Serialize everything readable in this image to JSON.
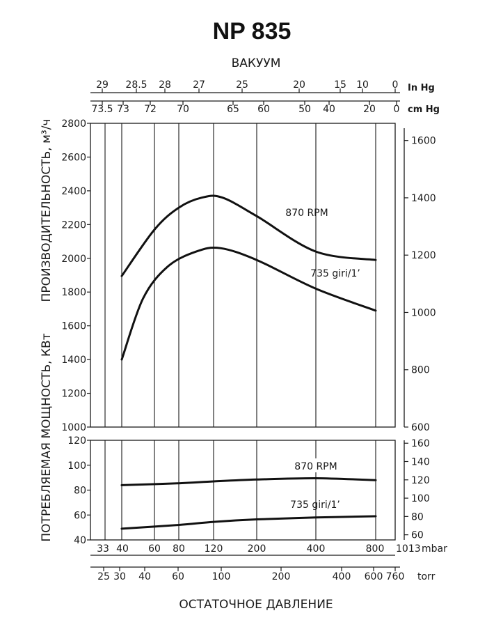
{
  "title": "NP 835",
  "top_axis_title": "ВАКУУМ",
  "bottom_axis_title": "ОСТАТОЧНОЕ ДАВЛЕНИЕ",
  "y_label_capacity": "ПРОИЗВОДИТЕЛЬНОСТЬ, м³/ч",
  "y_label_power": "ПОТРЕБЛЯЕМАЯ МОЩНОСТЬ, КВт",
  "chart_data": [
    {
      "type": "line",
      "name": "capacity",
      "xscale": "log",
      "xlim": [
        25,
        1013
      ],
      "ylim": [
        1000,
        2800
      ],
      "y_ticks": [
        1000,
        1200,
        1400,
        1600,
        1800,
        2000,
        2200,
        2400,
        2600,
        2800
      ],
      "y_right_ticks": [
        600,
        800,
        1000,
        1200,
        1400,
        1600
      ],
      "y_right_range": [
        600,
        1660
      ],
      "x_ticks_mbar": [
        33,
        40,
        60,
        80,
        120,
        200,
        400,
        800,
        1013
      ],
      "x_unit_mbar": "mbar",
      "series": [
        {
          "name": "870 RPM",
          "x": [
            40,
            60,
            80,
            105,
            133,
            200,
            400,
            800
          ],
          "y": [
            1895,
            2170,
            2300,
            2360,
            2360,
            2250,
            2040,
            1990
          ]
        },
        {
          "name": "735 giri/1'",
          "x": [
            40,
            52,
            70,
            98,
            130,
            200,
            400,
            800
          ],
          "y": [
            1400,
            1760,
            1950,
            2040,
            2060,
            1990,
            1820,
            1690
          ]
        }
      ]
    },
    {
      "type": "line",
      "name": "power",
      "xscale": "log",
      "xlim": [
        25,
        1013
      ],
      "ylim": [
        40,
        120
      ],
      "y_ticks": [
        40,
        60,
        80,
        100,
        120
      ],
      "y_right_ticks": [
        60,
        80,
        100,
        120,
        140,
        160
      ],
      "y_right_range": [
        54.4,
        163.2
      ],
      "x_ticks_torr": [
        25,
        30,
        40,
        60,
        100,
        200,
        400,
        600,
        760
      ],
      "x_unit_torr": "torr",
      "series": [
        {
          "name": "870 RPM",
          "x": [
            40,
            80,
            120,
            200,
            400,
            800
          ],
          "y": [
            84,
            85.5,
            87,
            88.5,
            89.5,
            88
          ]
        },
        {
          "name": "735 giri/1'",
          "x": [
            40,
            80,
            120,
            200,
            400,
            800
          ],
          "y": [
            49,
            52,
            54.5,
            56.5,
            58,
            59
          ]
        }
      ]
    }
  ],
  "vacuum_in_hg_ticks": [
    "29",
    "28.5",
    "28",
    "27",
    "25",
    "20",
    "15",
    "10",
    "0"
  ],
  "vacuum_in_hg_unit": "In Hg",
  "vacuum_cm_hg_ticks": [
    "73.5",
    "73",
    "72",
    "70",
    "65",
    "60",
    "50",
    "40",
    "20",
    "0"
  ],
  "vacuum_cm_hg_unit": "cm Hg",
  "curve_labels": {
    "cap_870": "870 RPM",
    "cap_735": "735 giri/1’",
    "pow_870": "870 RPM",
    "pow_735": "735 giri/1’"
  }
}
